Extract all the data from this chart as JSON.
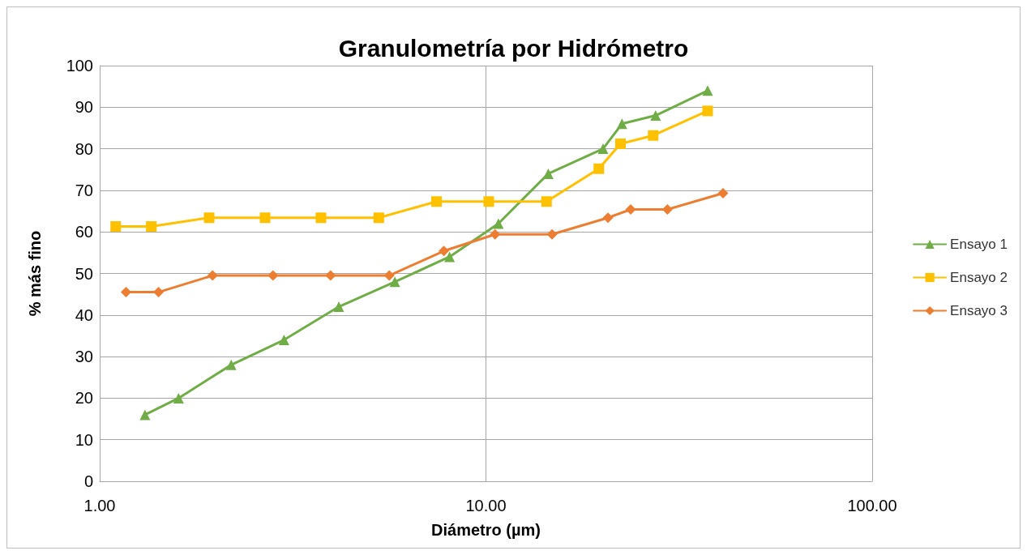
{
  "chart_data": {
    "type": "line",
    "title": "Granulometría por Hidrómetro",
    "xlabel": "Diámetro (µm)",
    "ylabel": "% más fino",
    "log": "x",
    "grid": true,
    "legend": "right",
    "xlim": [
      1,
      100
    ],
    "xticks": [
      {
        "value": 1,
        "label": "1.00"
      },
      {
        "value": 10,
        "label": "10.00"
      },
      {
        "value": 100,
        "label": "100.00"
      }
    ],
    "ylim": [
      0,
      100
    ],
    "yticks": [
      0,
      10,
      20,
      30,
      40,
      50,
      60,
      70,
      80,
      90,
      100
    ],
    "line_style": "solid",
    "series": [
      {
        "name": "Ensayo 1",
        "color": "#70ad47",
        "marker": "triangle",
        "x": [
          1.31,
          1.6,
          2.19,
          3.0,
          4.16,
          5.81,
          8.05,
          10.77,
          14.5,
          20.1,
          22.5,
          27.5,
          37.5
        ],
        "values": [
          16,
          20,
          28,
          34,
          42,
          48,
          54,
          62,
          74,
          80,
          86,
          88,
          94
        ]
      },
      {
        "name": "Ensayo 2",
        "color": "#ffc000",
        "marker": "square",
        "x": [
          1.1,
          1.36,
          1.92,
          2.68,
          3.74,
          5.28,
          7.45,
          10.17,
          14.35,
          19.6,
          22.3,
          27.1,
          37.5
        ],
        "values": [
          61.3,
          61.3,
          63.4,
          63.4,
          63.4,
          63.4,
          67.3,
          67.3,
          67.3,
          75.2,
          81.2,
          83.2,
          89.1
        ]
      },
      {
        "name": "Ensayo 3",
        "color": "#ed7d31",
        "marker": "diamond",
        "x": [
          1.17,
          1.42,
          1.96,
          2.81,
          3.96,
          5.62,
          7.78,
          10.56,
          14.83,
          20.7,
          23.7,
          29.5,
          41.1
        ],
        "values": [
          45.5,
          45.5,
          49.5,
          49.5,
          49.5,
          49.5,
          55.4,
          59.4,
          59.4,
          63.4,
          65.4,
          65.4,
          69.3
        ]
      }
    ]
  }
}
